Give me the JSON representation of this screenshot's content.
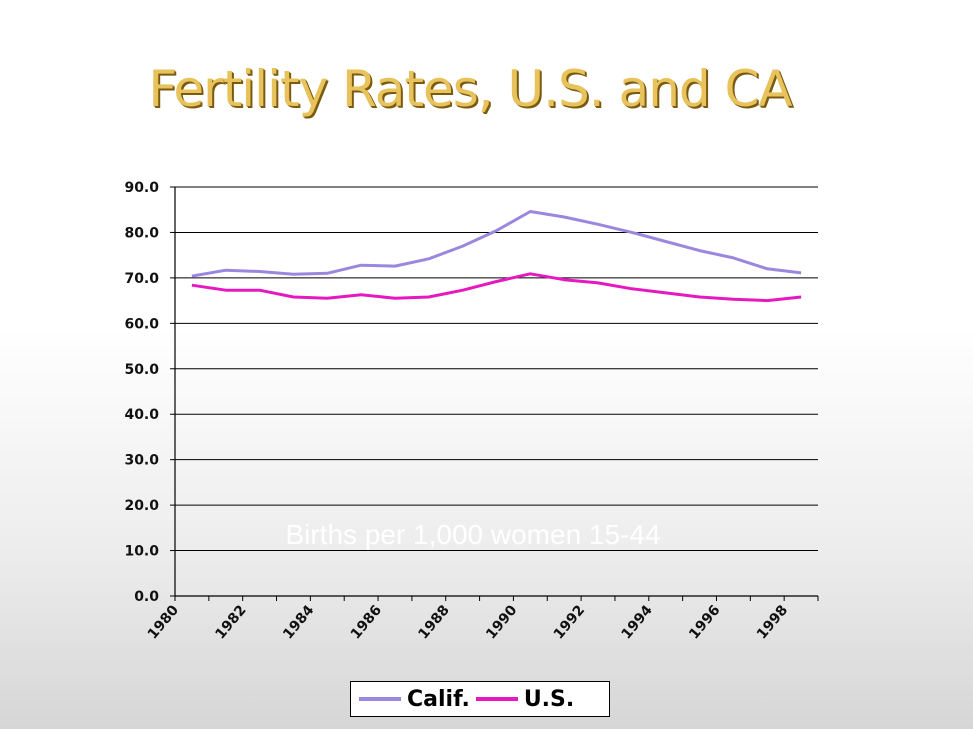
{
  "slide": {
    "title": "Fertility Rates, U.S. and CA"
  },
  "chart_data": {
    "type": "line",
    "title": "Fertility Rates, U.S. and CA",
    "annotation": "Births per 1,000  women 15-44",
    "xlabel": "",
    "ylabel": "",
    "ylim": [
      0,
      90
    ],
    "y_ticks": [
      "0.0",
      "10.0",
      "20.0",
      "30.0",
      "40.0",
      "50.0",
      "60.0",
      "70.0",
      "80.0",
      "90.0"
    ],
    "x_tick_labels": [
      "1980",
      "1982",
      "1984",
      "1986",
      "1988",
      "1990",
      "1992",
      "1994",
      "1996",
      "1998"
    ],
    "x": [
      1980,
      1981,
      1982,
      1983,
      1984,
      1985,
      1986,
      1987,
      1988,
      1989,
      1990,
      1991,
      1992,
      1993,
      1994,
      1995,
      1996,
      1997,
      1998
    ],
    "grid": true,
    "legend_position": "bottom",
    "series": [
      {
        "name": "Calif.",
        "color": "#9b87de",
        "values": [
          70.4,
          71.7,
          71.4,
          70.8,
          71.0,
          72.8,
          72.6,
          74.2,
          77.0,
          80.4,
          84.6,
          83.4,
          81.8,
          80.0,
          78.0,
          76.0,
          74.4,
          72.0,
          71.1
        ]
      },
      {
        "name": "U.S.",
        "color": "#e619c0",
        "values": [
          68.4,
          67.3,
          67.3,
          65.8,
          65.5,
          66.3,
          65.5,
          65.8,
          67.3,
          69.2,
          70.9,
          69.6,
          68.9,
          67.6,
          66.7,
          65.8,
          65.3,
          65.0,
          65.8
        ]
      }
    ]
  }
}
